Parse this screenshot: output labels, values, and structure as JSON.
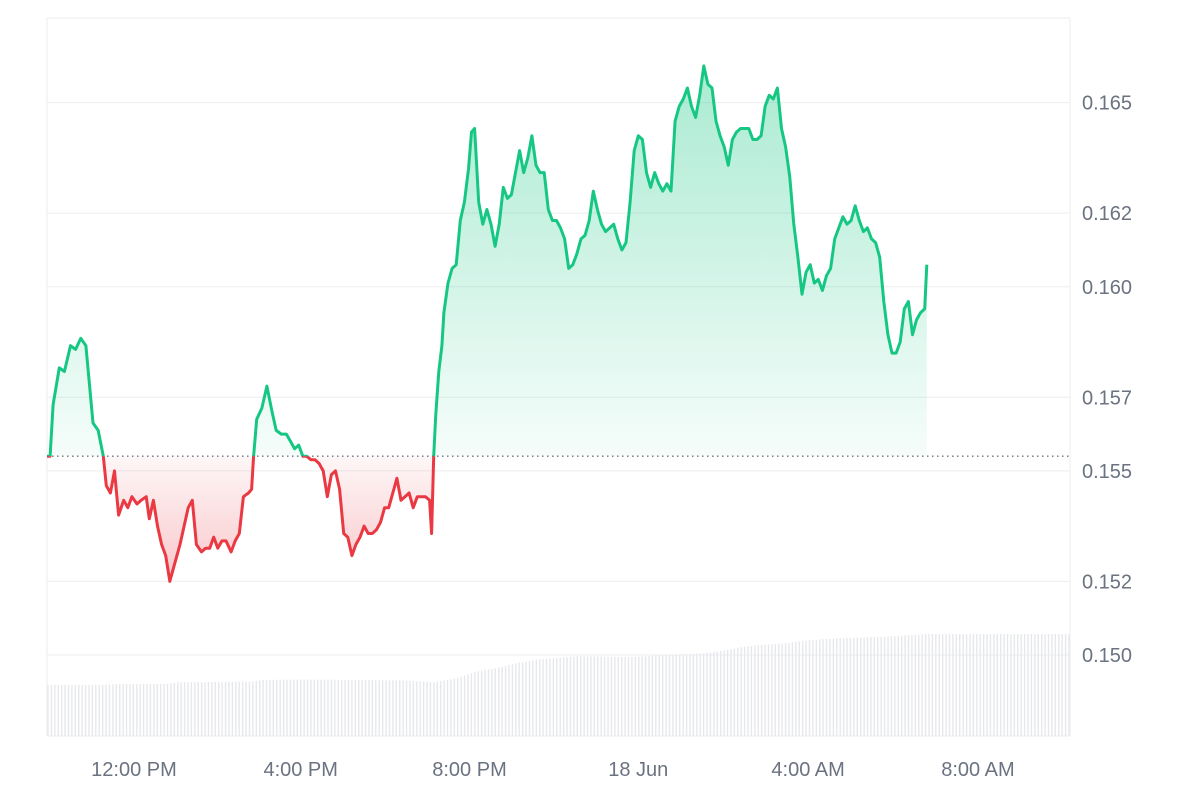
{
  "chart_data": {
    "type": "area",
    "title": "",
    "xlabel": "",
    "ylabel": "",
    "baseline": 0.1554,
    "ylim": [
      0.1478,
      0.1673
    ],
    "y_ticks": [
      "0.150",
      "0.152",
      "0.155",
      "0.157",
      "0.160",
      "0.162",
      "0.165"
    ],
    "x_ticks": [
      {
        "label": "12:00 PM",
        "t": 0.085
      },
      {
        "label": "4:00 PM",
        "t": 0.248
      },
      {
        "label": "8:00 PM",
        "t": 0.413
      },
      {
        "label": "18 Jun",
        "t": 0.578
      },
      {
        "label": "4:00 AM",
        "t": 0.744
      },
      {
        "label": "8:00 AM",
        "t": 0.91
      }
    ],
    "colors": {
      "up": "#16c784",
      "down": "#ea3943",
      "grid": "#eceef1",
      "volume": "#e6e8eb",
      "baseline": "#6b7280"
    },
    "series": [
      {
        "values": [
          [
            0.0,
            0.1554
          ],
          [
            0.003,
            0.1554
          ],
          [
            0.006,
            0.1568
          ],
          [
            0.012,
            0.1578
          ],
          [
            0.017,
            0.1577
          ],
          [
            0.023,
            0.1584
          ],
          [
            0.028,
            0.1583
          ],
          [
            0.033,
            0.1586
          ],
          [
            0.038,
            0.1584
          ],
          [
            0.045,
            0.1563
          ],
          [
            0.05,
            0.1561
          ],
          [
            0.055,
            0.1554
          ],
          [
            0.058,
            0.1546
          ],
          [
            0.062,
            0.1544
          ],
          [
            0.066,
            0.155
          ],
          [
            0.07,
            0.1538
          ],
          [
            0.075,
            0.1542
          ],
          [
            0.079,
            0.154
          ],
          [
            0.083,
            0.1543
          ],
          [
            0.088,
            0.1541
          ],
          [
            0.092,
            0.1542
          ],
          [
            0.097,
            0.1543
          ],
          [
            0.1,
            0.1537
          ],
          [
            0.104,
            0.1542
          ],
          [
            0.108,
            0.1535
          ],
          [
            0.112,
            0.153
          ],
          [
            0.116,
            0.1527
          ],
          [
            0.12,
            0.152
          ],
          [
            0.125,
            0.1525
          ],
          [
            0.13,
            0.153
          ],
          [
            0.134,
            0.1535
          ],
          [
            0.138,
            0.154
          ],
          [
            0.142,
            0.1542
          ],
          [
            0.146,
            0.153
          ],
          [
            0.151,
            0.1528
          ],
          [
            0.155,
            0.1529
          ],
          [
            0.159,
            0.1529
          ],
          [
            0.163,
            0.1532
          ],
          [
            0.167,
            0.1529
          ],
          [
            0.171,
            0.1531
          ],
          [
            0.175,
            0.1531
          ],
          [
            0.18,
            0.1528
          ],
          [
            0.184,
            0.1531
          ],
          [
            0.188,
            0.1533
          ],
          [
            0.192,
            0.1543
          ],
          [
            0.197,
            0.1544
          ],
          [
            0.2,
            0.1545
          ],
          [
            0.202,
            0.1554
          ],
          [
            0.205,
            0.1564
          ],
          [
            0.21,
            0.1567
          ],
          [
            0.215,
            0.1573
          ],
          [
            0.22,
            0.1566
          ],
          [
            0.224,
            0.1561
          ],
          [
            0.229,
            0.156
          ],
          [
            0.234,
            0.156
          ],
          [
            0.238,
            0.1558
          ],
          [
            0.242,
            0.1556
          ],
          [
            0.246,
            0.1557
          ],
          [
            0.25,
            0.1554
          ],
          [
            0.254,
            0.1554
          ],
          [
            0.258,
            0.1553
          ],
          [
            0.262,
            0.1553
          ],
          [
            0.266,
            0.1552
          ],
          [
            0.27,
            0.155
          ],
          [
            0.274,
            0.1543
          ],
          [
            0.278,
            0.1549
          ],
          [
            0.282,
            0.155
          ],
          [
            0.286,
            0.1545
          ],
          [
            0.29,
            0.1533
          ],
          [
            0.294,
            0.1532
          ],
          [
            0.298,
            0.1527
          ],
          [
            0.302,
            0.153
          ],
          [
            0.306,
            0.1532
          ],
          [
            0.31,
            0.1535
          ],
          [
            0.314,
            0.1533
          ],
          [
            0.318,
            0.1533
          ],
          [
            0.322,
            0.1534
          ],
          [
            0.326,
            0.1536
          ],
          [
            0.33,
            0.154
          ],
          [
            0.334,
            0.154
          ],
          [
            0.338,
            0.1544
          ],
          [
            0.342,
            0.1548
          ],
          [
            0.346,
            0.1542
          ],
          [
            0.35,
            0.1543
          ],
          [
            0.354,
            0.1544
          ],
          [
            0.358,
            0.154
          ],
          [
            0.362,
            0.1543
          ],
          [
            0.366,
            0.1543
          ],
          [
            0.37,
            0.1543
          ],
          [
            0.374,
            0.1542
          ],
          [
            0.376,
            0.1533
          ],
          [
            0.378,
            0.1554
          ],
          [
            0.38,
            0.1565
          ],
          [
            0.383,
            0.1577
          ],
          [
            0.386,
            0.1584
          ],
          [
            0.388,
            0.1593
          ],
          [
            0.392,
            0.1601
          ],
          [
            0.396,
            0.1605
          ],
          [
            0.4,
            0.1606
          ],
          [
            0.404,
            0.1618
          ],
          [
            0.408,
            0.1623
          ],
          [
            0.412,
            0.1632
          ],
          [
            0.415,
            0.1642
          ],
          [
            0.418,
            0.1643
          ],
          [
            0.422,
            0.1623
          ],
          [
            0.426,
            0.1617
          ],
          [
            0.43,
            0.1621
          ],
          [
            0.434,
            0.1617
          ],
          [
            0.438,
            0.1611
          ],
          [
            0.442,
            0.1617
          ],
          [
            0.446,
            0.1627
          ],
          [
            0.45,
            0.1624
          ],
          [
            0.454,
            0.1625
          ],
          [
            0.458,
            0.1631
          ],
          [
            0.462,
            0.1637
          ],
          [
            0.466,
            0.1631
          ],
          [
            0.47,
            0.1635
          ],
          [
            0.474,
            0.1641
          ],
          [
            0.478,
            0.1633
          ],
          [
            0.482,
            0.1631
          ],
          [
            0.486,
            0.1631
          ],
          [
            0.49,
            0.1621
          ],
          [
            0.494,
            0.1618
          ],
          [
            0.498,
            0.1618
          ],
          [
            0.502,
            0.1616
          ],
          [
            0.506,
            0.1613
          ],
          [
            0.51,
            0.1605
          ],
          [
            0.514,
            0.1606
          ],
          [
            0.518,
            0.1609
          ],
          [
            0.522,
            0.1613
          ],
          [
            0.526,
            0.1614
          ],
          [
            0.53,
            0.1618
          ],
          [
            0.534,
            0.1626
          ],
          [
            0.538,
            0.1621
          ],
          [
            0.542,
            0.1617
          ],
          [
            0.546,
            0.1615
          ],
          [
            0.55,
            0.1616
          ],
          [
            0.554,
            0.1617
          ],
          [
            0.558,
            0.1613
          ],
          [
            0.562,
            0.161
          ],
          [
            0.566,
            0.1612
          ],
          [
            0.57,
            0.1623
          ],
          [
            0.574,
            0.1637
          ],
          [
            0.578,
            0.1641
          ],
          [
            0.582,
            0.164
          ],
          [
            0.586,
            0.1631
          ],
          [
            0.59,
            0.1627
          ],
          [
            0.594,
            0.1631
          ],
          [
            0.598,
            0.1628
          ],
          [
            0.602,
            0.1626
          ],
          [
            0.606,
            0.1628
          ],
          [
            0.61,
            0.1626
          ],
          [
            0.614,
            0.1645
          ],
          [
            0.618,
            0.1649
          ],
          [
            0.622,
            0.1651
          ],
          [
            0.626,
            0.1654
          ],
          [
            0.63,
            0.1649
          ],
          [
            0.634,
            0.1646
          ],
          [
            0.638,
            0.1652
          ],
          [
            0.642,
            0.166
          ],
          [
            0.646,
            0.1655
          ],
          [
            0.65,
            0.1654
          ],
          [
            0.654,
            0.1645
          ],
          [
            0.658,
            0.1641
          ],
          [
            0.662,
            0.1638
          ],
          [
            0.666,
            0.1633
          ],
          [
            0.67,
            0.164
          ],
          [
            0.674,
            0.1642
          ],
          [
            0.678,
            0.1643
          ],
          [
            0.682,
            0.1643
          ],
          [
            0.686,
            0.1643
          ],
          [
            0.69,
            0.164
          ],
          [
            0.694,
            0.164
          ],
          [
            0.698,
            0.1641
          ],
          [
            0.702,
            0.1649
          ],
          [
            0.706,
            0.1652
          ],
          [
            0.71,
            0.1651
          ],
          [
            0.714,
            0.1654
          ],
          [
            0.718,
            0.1643
          ],
          [
            0.722,
            0.1638
          ],
          [
            0.726,
            0.163
          ],
          [
            0.73,
            0.1617
          ],
          [
            0.734,
            0.1608
          ],
          [
            0.738,
            0.1598
          ],
          [
            0.742,
            0.1604
          ],
          [
            0.746,
            0.1606
          ],
          [
            0.75,
            0.1601
          ],
          [
            0.754,
            0.1602
          ],
          [
            0.758,
            0.1599
          ],
          [
            0.762,
            0.1603
          ],
          [
            0.766,
            0.1605
          ],
          [
            0.77,
            0.1613
          ],
          [
            0.774,
            0.1616
          ],
          [
            0.778,
            0.1619
          ],
          [
            0.782,
            0.1617
          ],
          [
            0.786,
            0.1618
          ],
          [
            0.79,
            0.1622
          ],
          [
            0.794,
            0.1618
          ],
          [
            0.798,
            0.1615
          ],
          [
            0.802,
            0.1616
          ],
          [
            0.806,
            0.1613
          ],
          [
            0.81,
            0.1612
          ],
          [
            0.814,
            0.1608
          ],
          [
            0.818,
            0.1596
          ],
          [
            0.822,
            0.1587
          ],
          [
            0.826,
            0.1582
          ],
          [
            0.83,
            0.1582
          ],
          [
            0.834,
            0.1585
          ],
          [
            0.838,
            0.1594
          ],
          [
            0.842,
            0.1596
          ],
          [
            0.846,
            0.1587
          ],
          [
            0.85,
            0.1591
          ],
          [
            0.854,
            0.1593
          ],
          [
            0.858,
            0.1594
          ],
          [
            0.86,
            0.1606
          ]
        ]
      }
    ],
    "volume": [
      [
        0.0,
        0.15
      ],
      [
        0.055,
        0.15
      ],
      [
        0.065,
        0.152
      ],
      [
        0.12,
        0.154
      ],
      [
        0.125,
        0.158
      ],
      [
        0.2,
        0.16
      ],
      [
        0.21,
        0.165
      ],
      [
        0.25,
        0.166
      ],
      [
        0.3,
        0.165
      ],
      [
        0.35,
        0.163
      ],
      [
        0.378,
        0.158
      ],
      [
        0.4,
        0.17
      ],
      [
        0.42,
        0.19
      ],
      [
        0.44,
        0.2
      ],
      [
        0.46,
        0.215
      ],
      [
        0.48,
        0.225
      ],
      [
        0.5,
        0.23
      ],
      [
        0.52,
        0.235
      ],
      [
        0.54,
        0.234
      ],
      [
        0.56,
        0.232
      ],
      [
        0.578,
        0.233
      ],
      [
        0.6,
        0.238
      ],
      [
        0.62,
        0.24
      ],
      [
        0.64,
        0.243
      ],
      [
        0.66,
        0.25
      ],
      [
        0.68,
        0.262
      ],
      [
        0.7,
        0.268
      ],
      [
        0.72,
        0.272
      ],
      [
        0.74,
        0.28
      ],
      [
        0.76,
        0.285
      ],
      [
        0.78,
        0.288
      ],
      [
        0.8,
        0.29
      ],
      [
        0.82,
        0.292
      ],
      [
        0.84,
        0.296
      ],
      [
        0.86,
        0.3
      ]
    ]
  }
}
